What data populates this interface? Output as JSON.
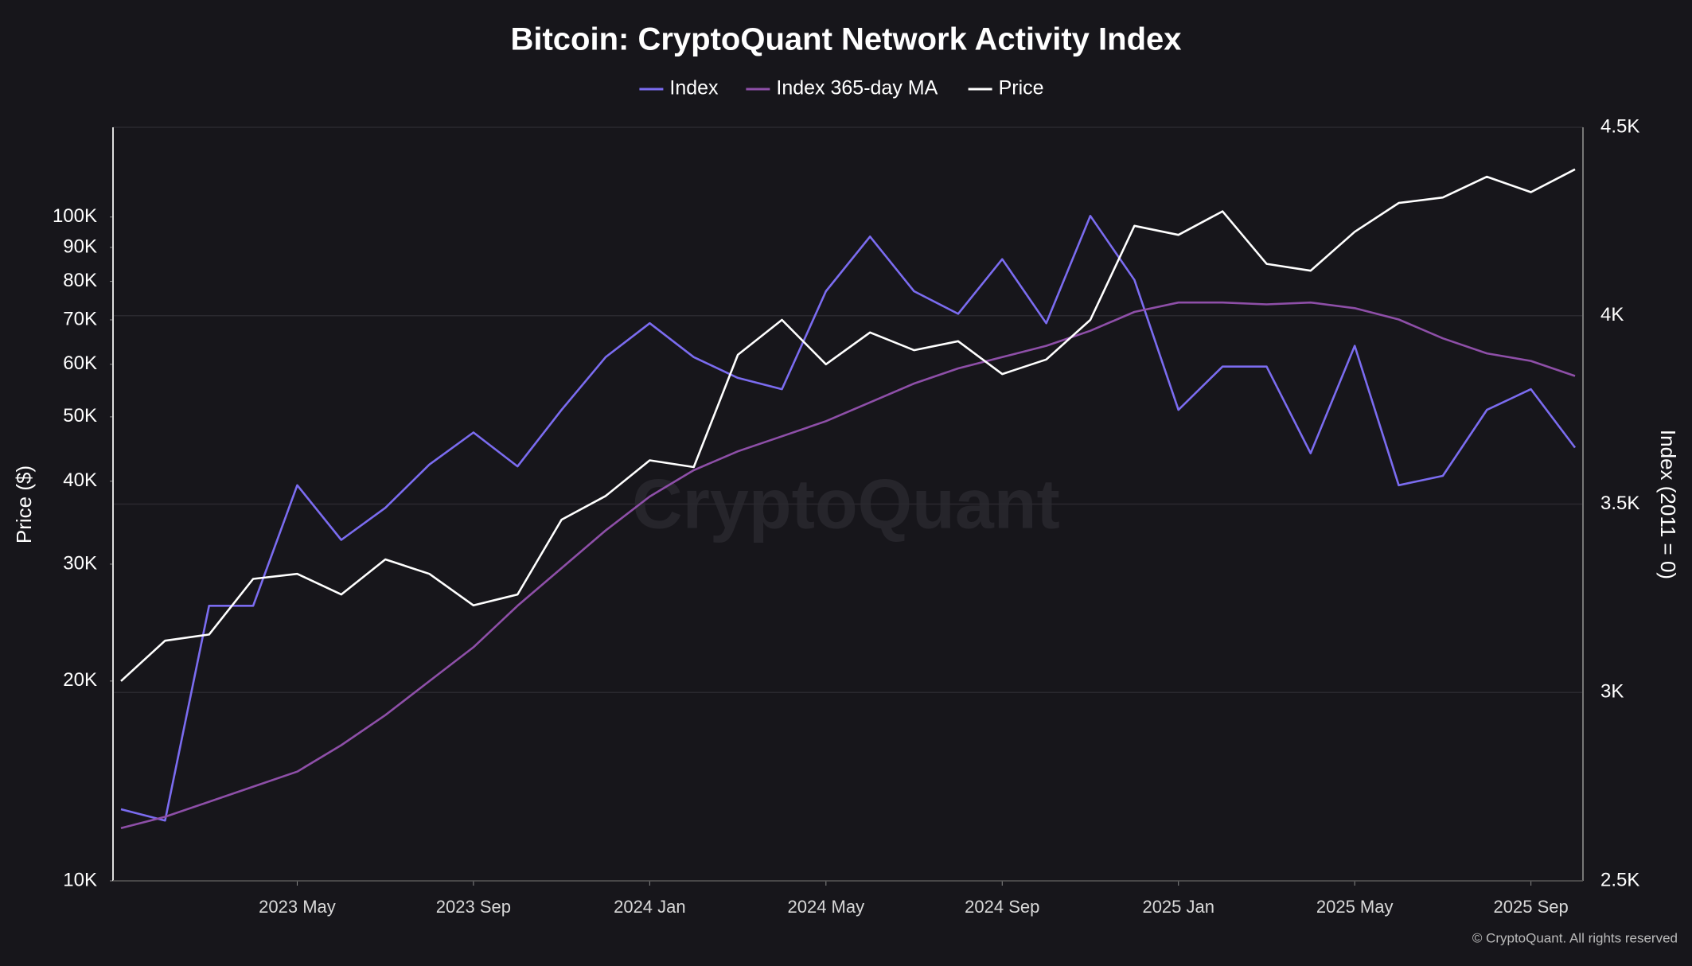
{
  "chart_data": {
    "type": "line",
    "title": "Bitcoin: CryptoQuant Network Activity Index",
    "ylabel": "Price ($)",
    "y2label": "Index (2011 = 0)",
    "watermark": "CryptoQuant",
    "footer": "© CryptoQuant. All rights reserved",
    "x": [
      "2023-01",
      "2023-02",
      "2023-03",
      "2023-04",
      "2023-05",
      "2023-06",
      "2023-07",
      "2023-08",
      "2023-09",
      "2023-10",
      "2023-11",
      "2023-12",
      "2024-01",
      "2024-02",
      "2024-03",
      "2024-04",
      "2024-05",
      "2024-06",
      "2024-07",
      "2024-08",
      "2024-09",
      "2024-10",
      "2024-11",
      "2024-12",
      "2025-01",
      "2025-02",
      "2025-03",
      "2025-04",
      "2025-05",
      "2025-06",
      "2025-07",
      "2025-08",
      "2025-09",
      "2025-10"
    ],
    "xlim": [
      "2023-01",
      "2025-10"
    ],
    "xticks": [
      {
        "value": "2023-05",
        "label": "2023 May"
      },
      {
        "value": "2023-09",
        "label": "2023 Sep"
      },
      {
        "value": "2024-01",
        "label": "2024 Jan"
      },
      {
        "value": "2024-05",
        "label": "2024 May"
      },
      {
        "value": "2024-09",
        "label": "2024 Sep"
      },
      {
        "value": "2025-01",
        "label": "2025 Jan"
      },
      {
        "value": "2025-05",
        "label": "2025 May"
      },
      {
        "value": "2025-09",
        "label": "2025 Sep"
      }
    ],
    "ylog": true,
    "ylim": [
      10000,
      136500
    ],
    "yticks": [
      {
        "value": 10000,
        "label": "10K"
      },
      {
        "value": 20000,
        "label": "20K"
      },
      {
        "value": 30000,
        "label": "30K"
      },
      {
        "value": 40000,
        "label": "40K"
      },
      {
        "value": 50000,
        "label": "50K"
      },
      {
        "value": 60000,
        "label": "60K"
      },
      {
        "value": 70000,
        "label": "70K"
      },
      {
        "value": 80000,
        "label": "80K"
      },
      {
        "value": 90000,
        "label": "90K"
      },
      {
        "value": 100000,
        "label": "100K"
      }
    ],
    "y2lim": [
      2500,
      4500
    ],
    "y2ticks": [
      {
        "value": 2500,
        "label": "2.5K"
      },
      {
        "value": 3000,
        "label": "3K"
      },
      {
        "value": 3500,
        "label": "3.5K"
      },
      {
        "value": 4000,
        "label": "4K"
      },
      {
        "value": 4500,
        "label": "4.5K"
      }
    ],
    "grid": true,
    "legend": "top",
    "series": [
      {
        "name": "Index",
        "color": "#7b6cf0",
        "axis": "y2",
        "values": [
          2690,
          2660,
          3230,
          3230,
          3550,
          3405,
          3490,
          3605,
          3690,
          3600,
          3750,
          3890,
          3980,
          3890,
          3835,
          3805,
          4065,
          4210,
          4065,
          4005,
          4150,
          3980,
          4265,
          4095,
          3750,
          3865,
          3865,
          3635,
          3920,
          3550,
          3575,
          3750,
          3805,
          3650
        ]
      },
      {
        "name": "Index 365-day MA",
        "color": "#8e4fa8",
        "axis": "y2",
        "values": [
          2640,
          2670,
          2710,
          2750,
          2790,
          2860,
          2940,
          3030,
          3120,
          3230,
          3330,
          3430,
          3520,
          3590,
          3640,
          3680,
          3720,
          3770,
          3820,
          3860,
          3890,
          3920,
          3960,
          4010,
          4035,
          4035,
          4030,
          4035,
          4020,
          3990,
          3940,
          3900,
          3880,
          3840
        ]
      },
      {
        "name": "Price",
        "color": "#ffffff",
        "axis": "y",
        "values": [
          20000,
          23000,
          23500,
          28500,
          29000,
          27000,
          30500,
          29000,
          26000,
          27000,
          35000,
          38000,
          43000,
          42000,
          62000,
          70000,
          60000,
          67000,
          63000,
          65000,
          58000,
          61000,
          70000,
          97000,
          94000,
          102000,
          85000,
          83000,
          95000,
          105000,
          107000,
          115000,
          109000,
          118000
        ]
      }
    ]
  }
}
